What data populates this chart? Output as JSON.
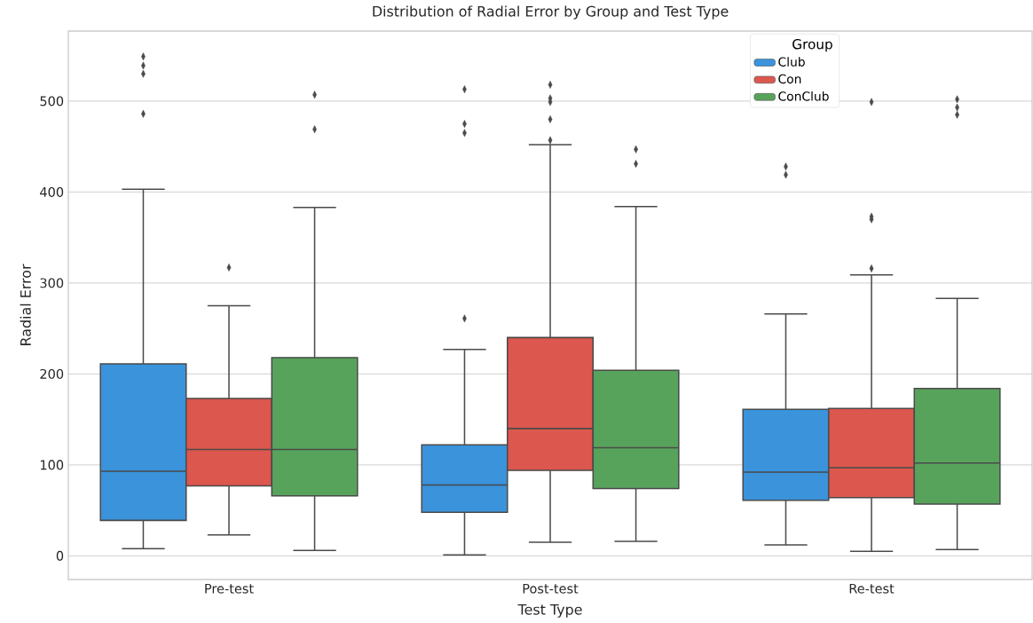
{
  "chart_data": {
    "type": "box",
    "title": "Distribution of Radial Error by Group and Test Type",
    "xlabel": "Test Type",
    "ylabel": "Radial Error",
    "categories": [
      "Pre-test",
      "Post-test",
      "Re-test"
    ],
    "ylim": [
      -26,
      577
    ],
    "yticks": [
      0,
      100,
      200,
      300,
      400,
      500
    ],
    "grid": "y",
    "legend": "top right",
    "legend_title": "Group",
    "marker": "diamond",
    "series": [
      {
        "name": "Club",
        "color": "#3a93db",
        "boxes": [
          {
            "low": 8,
            "q1": 39,
            "median": 93,
            "q3": 211,
            "high": 403,
            "outliers": [
              549,
              539,
              530,
              486
            ]
          },
          {
            "low": 1,
            "q1": 48,
            "median": 78,
            "q3": 122,
            "high": 227,
            "outliers": [
              513,
              475,
              465,
              261
            ]
          },
          {
            "low": 12,
            "q1": 61,
            "median": 92,
            "q3": 161,
            "high": 266,
            "outliers": [
              428,
              419
            ]
          }
        ]
      },
      {
        "name": "Con",
        "color": "#dc574e",
        "boxes": [
          {
            "low": 23,
            "q1": 77,
            "median": 117,
            "q3": 173,
            "high": 275,
            "outliers": [
              317
            ]
          },
          {
            "low": 15,
            "q1": 94,
            "median": 140,
            "q3": 240,
            "high": 452,
            "outliers": [
              518,
              503,
              499,
              480,
              457
            ]
          },
          {
            "low": 5,
            "q1": 64,
            "median": 97,
            "q3": 162,
            "high": 309,
            "outliers": [
              499,
              373,
              370,
              316
            ]
          }
        ]
      },
      {
        "name": "ConClub",
        "color": "#58a35c",
        "boxes": [
          {
            "low": 6,
            "q1": 66,
            "median": 117,
            "q3": 218,
            "high": 383,
            "outliers": [
              507,
              469
            ]
          },
          {
            "low": 16,
            "q1": 74,
            "median": 119,
            "q3": 204,
            "high": 384,
            "outliers": [
              447,
              431
            ]
          },
          {
            "low": 7,
            "q1": 57,
            "median": 102,
            "q3": 184,
            "high": 283,
            "outliers": [
              502,
              493,
              485
            ]
          }
        ]
      }
    ]
  }
}
